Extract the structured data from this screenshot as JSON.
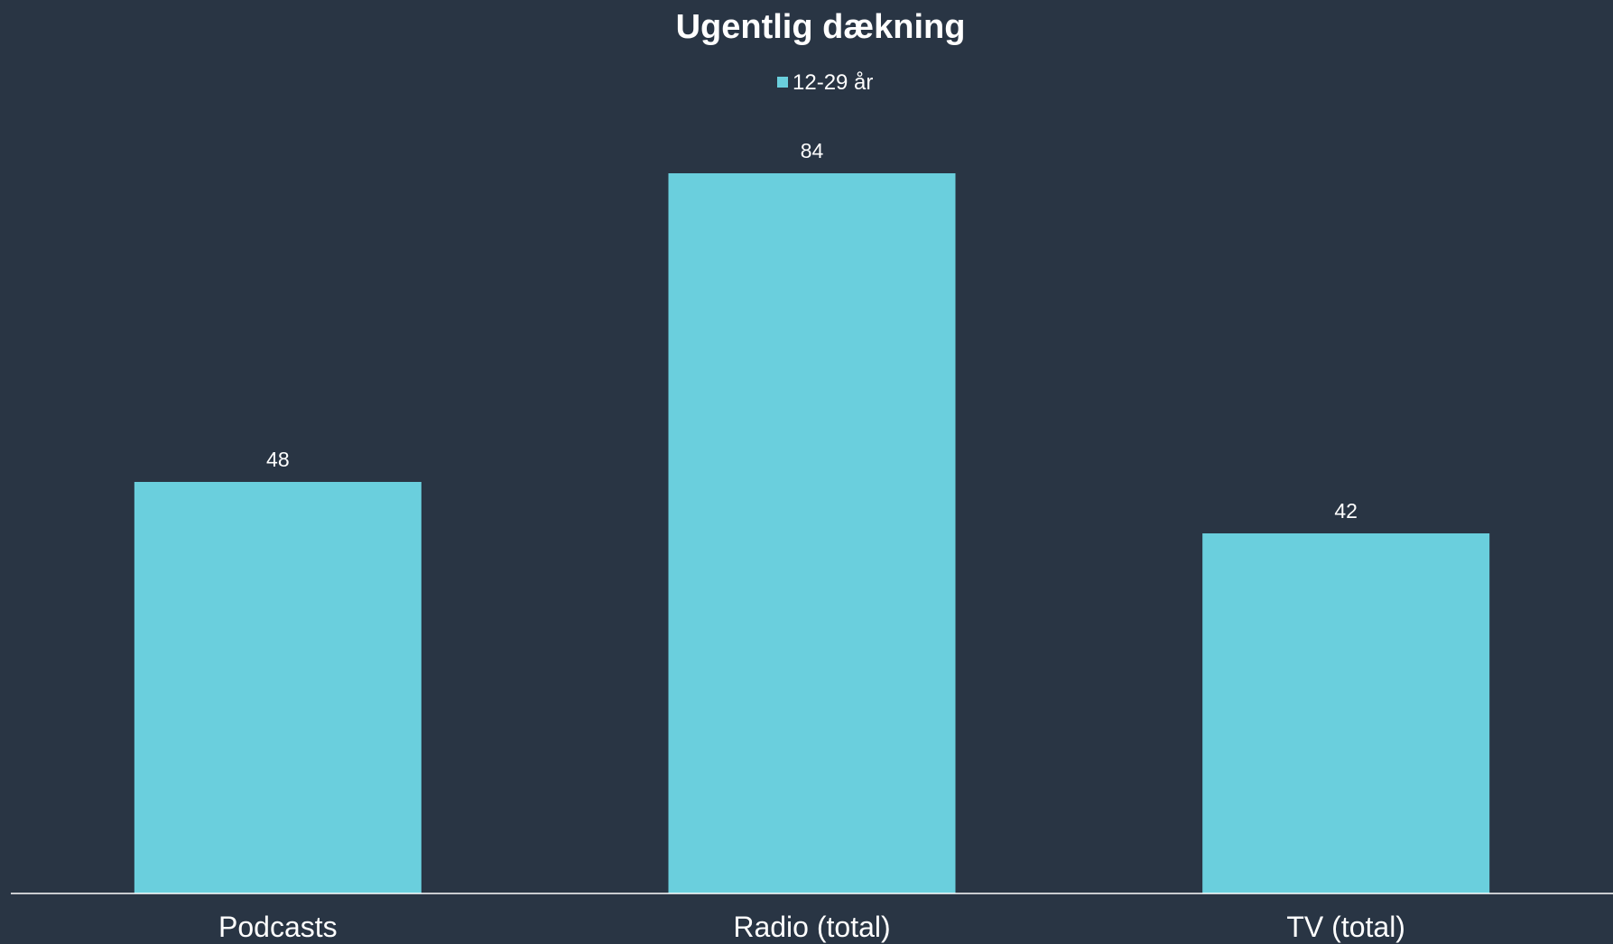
{
  "chart_data": {
    "type": "bar",
    "title": "Ugentlig dækning",
    "categories": [
      "Podcasts",
      "Radio (total)",
      "TV (total)"
    ],
    "series": [
      {
        "name": "12-29 år",
        "values": [
          48,
          84,
          42
        ],
        "color": "#6ACFDD"
      }
    ],
    "data_labels": [
      "48",
      "84",
      "42"
    ],
    "ylim": [
      0,
      100
    ],
    "grid": false,
    "legend_position": "top-center",
    "background_color": "#293544",
    "axis_color": "#ffffff"
  }
}
